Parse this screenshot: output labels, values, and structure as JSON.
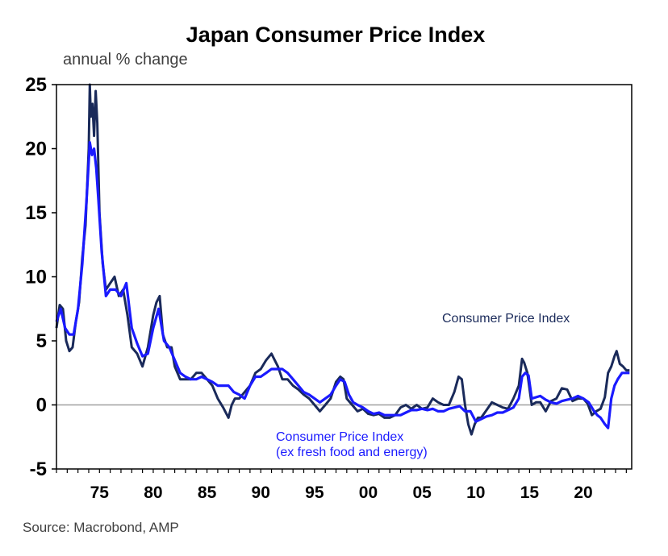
{
  "colors": {
    "cpi": "#1a2a5a",
    "core": "#1a1aff",
    "zero": "#a0a0a0",
    "frame": "#000000",
    "text_gray": "#404040"
  },
  "chart_data": {
    "type": "line",
    "title": "Japan Consumer Price Index",
    "ylabel": "annual % change",
    "source": "Source: Macrobond, AMP",
    "ylim": [
      -5,
      25
    ],
    "yticks": [
      {
        "v": -5,
        "label": "-5"
      },
      {
        "v": 0,
        "label": "0"
      },
      {
        "v": 5,
        "label": "5"
      },
      {
        "v": 10,
        "label": "10"
      },
      {
        "v": 15,
        "label": "15"
      },
      {
        "v": 20,
        "label": "20"
      },
      {
        "v": 25,
        "label": "25"
      }
    ],
    "xlim": [
      1971,
      2024.5
    ],
    "xticks": [
      {
        "v": 1975,
        "label": "75"
      },
      {
        "v": 1980,
        "label": "80"
      },
      {
        "v": 1985,
        "label": "85"
      },
      {
        "v": 1990,
        "label": "90"
      },
      {
        "v": 1995,
        "label": "95"
      },
      {
        "v": 2000,
        "label": "00"
      },
      {
        "v": 2005,
        "label": "05"
      },
      {
        "v": 2010,
        "label": "10"
      },
      {
        "v": 2015,
        "label": "15"
      },
      {
        "v": 2020,
        "label": "20"
      }
    ],
    "grid": false,
    "series": [
      {
        "name": "Consumer Price Index",
        "label_lines": [
          "Consumer Price Index"
        ],
        "color_key": "cpi",
        "x": [
          1971.0,
          1971.3,
          1971.6,
          1971.9,
          1972.2,
          1972.5,
          1972.8,
          1973.1,
          1973.4,
          1973.7,
          1974.0,
          1974.1,
          1974.2,
          1974.35,
          1974.5,
          1974.65,
          1974.8,
          1975.0,
          1975.3,
          1975.6,
          1976.0,
          1976.4,
          1976.8,
          1977.2,
          1977.6,
          1978.0,
          1978.5,
          1979.0,
          1979.5,
          1980.0,
          1980.3,
          1980.6,
          1980.9,
          1981.3,
          1981.7,
          1982.0,
          1982.5,
          1983.0,
          1983.5,
          1984.0,
          1984.5,
          1985.0,
          1985.5,
          1986.0,
          1986.5,
          1987.0,
          1987.3,
          1987.6,
          1988.0,
          1988.5,
          1989.0,
          1989.5,
          1990.0,
          1990.5,
          1991.0,
          1991.3,
          1991.6,
          1992.0,
          1992.5,
          1993.0,
          1993.5,
          1994.0,
          1994.5,
          1995.0,
          1995.5,
          1996.0,
          1996.5,
          1997.0,
          1997.4,
          1997.7,
          1998.0,
          1998.5,
          1999.0,
          1999.5,
          2000.0,
          2000.5,
          2001.0,
          2001.5,
          2002.0,
          2002.5,
          2003.0,
          2003.5,
          2004.0,
          2004.5,
          2005.0,
          2005.5,
          2006.0,
          2006.5,
          2007.0,
          2007.5,
          2008.0,
          2008.4,
          2008.7,
          2009.0,
          2009.3,
          2009.6,
          2009.9,
          2010.2,
          2010.5,
          2011.0,
          2011.5,
          2012.0,
          2012.5,
          2013.0,
          2013.5,
          2014.0,
          2014.3,
          2014.5,
          2014.8,
          2015.2,
          2015.6,
          2016.0,
          2016.5,
          2017.0,
          2017.5,
          2018.0,
          2018.5,
          2019.0,
          2019.5,
          2020.0,
          2020.4,
          2020.8,
          2021.2,
          2021.6,
          2022.0,
          2022.3,
          2022.6,
          2022.9,
          2023.1,
          2023.4,
          2023.7,
          2024.0,
          2024.3
        ],
        "y": [
          6.0,
          7.8,
          7.5,
          5.0,
          4.2,
          4.5,
          6.5,
          8.0,
          11.5,
          14.0,
          20.0,
          25.0,
          22.5,
          23.5,
          21.0,
          24.5,
          22.0,
          15.0,
          11.0,
          9.0,
          9.5,
          10.0,
          8.5,
          9.0,
          7.0,
          4.5,
          4.0,
          3.0,
          4.5,
          7.0,
          8.0,
          8.5,
          5.5,
          4.5,
          4.5,
          3.0,
          2.0,
          2.0,
          2.0,
          2.5,
          2.5,
          2.0,
          1.5,
          0.5,
          -0.2,
          -1.0,
          0.0,
          0.5,
          0.5,
          1.0,
          1.5,
          2.5,
          2.8,
          3.5,
          4.0,
          3.5,
          3.0,
          2.0,
          2.0,
          1.5,
          1.2,
          0.8,
          0.5,
          0.0,
          -0.5,
          0.0,
          0.5,
          1.8,
          2.2,
          2.0,
          0.5,
          0.0,
          -0.5,
          -0.3,
          -0.7,
          -0.8,
          -0.7,
          -1.0,
          -1.0,
          -0.8,
          -0.2,
          0.0,
          -0.3,
          0.0,
          -0.3,
          -0.2,
          0.5,
          0.2,
          0.0,
          0.0,
          1.0,
          2.2,
          2.0,
          0.0,
          -1.5,
          -2.3,
          -1.5,
          -1.0,
          -1.0,
          -0.4,
          0.2,
          0.0,
          -0.2,
          -0.3,
          0.5,
          1.5,
          3.6,
          3.3,
          2.5,
          0.0,
          0.2,
          0.2,
          -0.5,
          0.3,
          0.5,
          1.3,
          1.2,
          0.3,
          0.5,
          0.5,
          0.1,
          -0.8,
          -0.5,
          -0.3,
          0.6,
          2.5,
          3.0,
          3.8,
          4.2,
          3.2,
          3.0,
          2.7,
          2.7
        ]
      },
      {
        "name": "Consumer Price Index (ex fresh food and energy)",
        "label_lines": [
          "Consumer Price Index",
          "(ex fresh food and energy)"
        ],
        "color_key": "core",
        "x": [
          1971.0,
          1971.4,
          1971.8,
          1972.2,
          1972.6,
          1973.0,
          1973.4,
          1973.8,
          1974.1,
          1974.3,
          1974.5,
          1974.7,
          1974.9,
          1975.2,
          1975.6,
          1976.0,
          1976.5,
          1977.0,
          1977.5,
          1978.0,
          1978.5,
          1979.0,
          1979.5,
          1980.0,
          1980.5,
          1981.0,
          1981.5,
          1982.0,
          1982.5,
          1983.0,
          1983.5,
          1984.0,
          1984.5,
          1985.0,
          1985.5,
          1986.0,
          1986.5,
          1987.0,
          1987.5,
          1988.0,
          1988.5,
          1989.0,
          1989.5,
          1990.0,
          1990.5,
          1991.0,
          1991.5,
          1992.0,
          1992.5,
          1993.0,
          1993.5,
          1994.0,
          1994.5,
          1995.0,
          1995.5,
          1996.0,
          1996.5,
          1997.0,
          1997.4,
          1997.8,
          1998.2,
          1998.6,
          1999.0,
          1999.5,
          2000.0,
          2000.5,
          2001.0,
          2001.5,
          2002.0,
          2002.5,
          2003.0,
          2003.5,
          2004.0,
          2004.5,
          2005.0,
          2005.5,
          2006.0,
          2006.5,
          2007.0,
          2007.5,
          2008.0,
          2008.5,
          2009.0,
          2009.5,
          2010.0,
          2010.5,
          2011.0,
          2011.5,
          2012.0,
          2012.5,
          2013.0,
          2013.5,
          2014.0,
          2014.3,
          2014.6,
          2014.9,
          2015.2,
          2015.6,
          2016.0,
          2016.5,
          2017.0,
          2017.5,
          2018.0,
          2018.5,
          2019.0,
          2019.5,
          2020.0,
          2020.5,
          2021.0,
          2021.3,
          2021.6,
          2022.0,
          2022.3,
          2022.6,
          2022.9,
          2023.2,
          2023.6,
          2024.0,
          2024.3
        ],
        "y": [
          6.5,
          7.5,
          6.0,
          5.5,
          5.5,
          7.5,
          11.0,
          16.0,
          20.5,
          19.5,
          20.0,
          18.5,
          16.0,
          12.0,
          8.5,
          9.0,
          9.0,
          8.5,
          9.5,
          6.0,
          4.8,
          3.8,
          4.0,
          6.0,
          7.5,
          5.0,
          4.5,
          3.5,
          2.5,
          2.2,
          2.0,
          2.0,
          2.2,
          2.0,
          1.8,
          1.5,
          1.5,
          1.5,
          1.0,
          0.8,
          0.5,
          1.5,
          2.2,
          2.2,
          2.5,
          2.8,
          2.8,
          2.8,
          2.5,
          2.0,
          1.5,
          1.0,
          0.8,
          0.5,
          0.2,
          0.5,
          0.8,
          1.5,
          2.0,
          1.8,
          0.8,
          0.2,
          0.0,
          -0.2,
          -0.5,
          -0.7,
          -0.6,
          -0.8,
          -0.8,
          -0.8,
          -0.8,
          -0.6,
          -0.4,
          -0.4,
          -0.3,
          -0.4,
          -0.3,
          -0.5,
          -0.5,
          -0.3,
          -0.2,
          -0.1,
          -0.5,
          -0.5,
          -1.3,
          -1.1,
          -0.9,
          -0.8,
          -0.6,
          -0.6,
          -0.4,
          -0.2,
          0.5,
          2.2,
          2.5,
          2.3,
          0.5,
          0.6,
          0.7,
          0.4,
          0.2,
          0.1,
          0.3,
          0.4,
          0.5,
          0.7,
          0.5,
          0.2,
          -0.5,
          -0.8,
          -1.0,
          -1.5,
          -1.8,
          0.5,
          1.5,
          2.0,
          2.5,
          2.5,
          2.5
        ]
      }
    ]
  }
}
